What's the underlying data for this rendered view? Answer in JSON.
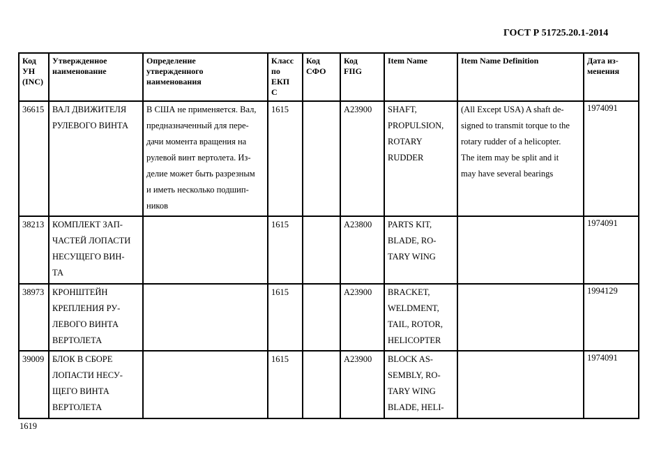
{
  "header": {
    "doc_code": "ГОСТ Р 51725.20.1-2014"
  },
  "footer": {
    "page_number": "1619"
  },
  "table": {
    "columns": [
      [
        "Код",
        "УН",
        "(INC)"
      ],
      [
        "Утвержденное",
        "наименование"
      ],
      [
        "Определение",
        "утвержденного",
        "наименования"
      ],
      [
        "Класс",
        "по",
        "ЕКП",
        "С"
      ],
      [
        "Код",
        "СФО"
      ],
      [
        "Код",
        "FIIG"
      ],
      [
        "Item Name"
      ],
      [
        "Item Name Definition"
      ],
      [
        "Дата из-",
        "менения"
      ]
    ],
    "rows": [
      {
        "inc": [
          "36615"
        ],
        "name": [
          "ВАЛ ДВИЖИТЕЛЯ",
          "РУЛЕВОГО ВИНТА"
        ],
        "definition": [
          "В США не применяется. Вал,",
          "предназначенный для пере-",
          "дачи момента вращения на",
          "рулевой винт вертолета. Из-",
          "делие может быть разрезным",
          "и иметь несколько подшип-",
          "ников"
        ],
        "ekps": [
          "1615"
        ],
        "sfo": [],
        "fiig": [
          "A23900"
        ],
        "item_name": [
          "SHAFT,",
          "PROPULSION,",
          "ROTARY",
          "RUDDER"
        ],
        "item_def": [
          "(All Except USA) A shaft de-",
          "signed to transmit torque to the",
          "rotary rudder of a helicopter.",
          "The item may be split and it",
          "may have several bearings"
        ],
        "date": [
          "1974091"
        ]
      },
      {
        "inc": [
          "38213"
        ],
        "name": [
          "КОМПЛЕКТ ЗАП-",
          "ЧАСТЕЙ ЛОПАСТИ",
          "НЕСУЩЕГО ВИН-",
          "ТА"
        ],
        "definition": [],
        "ekps": [
          "1615"
        ],
        "sfo": [],
        "fiig": [
          "A23800"
        ],
        "item_name": [
          "PARTS KIT,",
          "BLADE, RO-",
          "TARY WING"
        ],
        "item_def": [],
        "date": [
          "1974091"
        ]
      },
      {
        "inc": [
          "38973"
        ],
        "name": [
          "КРОНШТЕЙН",
          "КРЕПЛЕНИЯ РУ-",
          "ЛЕВОГО ВИНТА",
          "ВЕРТОЛЕТА"
        ],
        "definition": [],
        "ekps": [
          "1615"
        ],
        "sfo": [],
        "fiig": [
          "A23900"
        ],
        "item_name": [
          "BRACKET,",
          "WELDMENT,",
          "TAIL, ROTOR,",
          "HELICOPTER"
        ],
        "item_def": [],
        "date": [
          "1994129"
        ]
      },
      {
        "inc": [
          "39009"
        ],
        "name": [
          "БЛОК В СБОРЕ",
          "ЛОПАСТИ НЕСУ-",
          "ЩЕГО ВИНТА",
          "ВЕРТОЛЕТА"
        ],
        "definition": [],
        "ekps": [
          "1615"
        ],
        "sfo": [],
        "fiig": [
          "A23900"
        ],
        "item_name": [
          "BLOCK AS-",
          "SEMBLY, RO-",
          "TARY WING",
          "BLADE, HELI-"
        ],
        "item_def": [],
        "date": [
          "1974091"
        ]
      }
    ]
  }
}
